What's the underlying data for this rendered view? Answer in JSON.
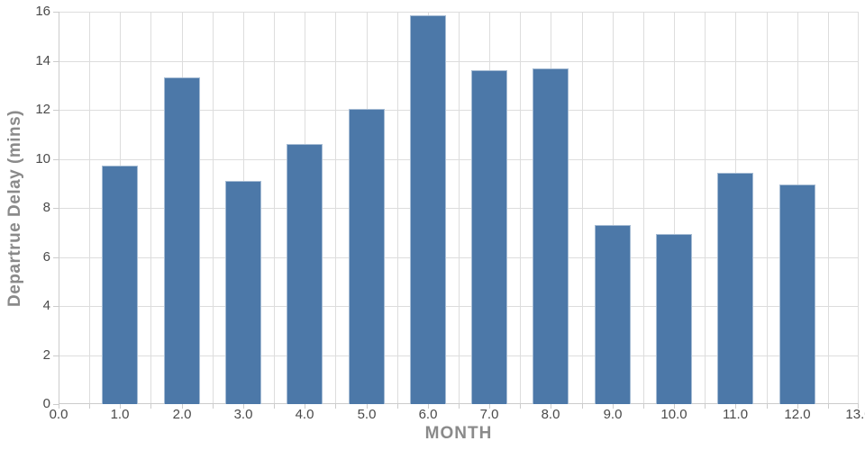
{
  "chart_data": {
    "type": "bar",
    "title": "",
    "xlabel": "MONTH",
    "ylabel": "Departrue Delay (mins)",
    "categories": [
      1,
      2,
      3,
      4,
      5,
      6,
      7,
      8,
      9,
      10,
      11,
      12
    ],
    "values": [
      9.72,
      13.32,
      9.11,
      10.61,
      12.02,
      15.84,
      13.61,
      13.67,
      7.31,
      6.95,
      9.43,
      8.95
    ],
    "xlim": [
      0,
      13
    ],
    "ylim": [
      0,
      16
    ],
    "x_major_ticks": [
      0,
      1,
      2,
      3,
      4,
      5,
      6,
      7,
      8,
      9,
      10,
      11,
      12,
      13
    ],
    "x_tick_labels": [
      "0.0",
      "1.0",
      "2.0",
      "3.0",
      "4.0",
      "5.0",
      "6.0",
      "7.0",
      "8.0",
      "9.0",
      "10.0",
      "11.0",
      "12.0",
      "13.0"
    ],
    "x_minor_tick_step": 0.5,
    "y_major_ticks": [
      0,
      2,
      4,
      6,
      8,
      10,
      12,
      14,
      16
    ],
    "y_tick_labels": [
      "0",
      "2",
      "4",
      "6",
      "8",
      "10",
      "12",
      "14",
      "16"
    ],
    "grid": "vertical every 0.5 month, horizontal every 2 mins",
    "legend": "none",
    "colors": {
      "bar_fill": "#4c78a8",
      "bar_stroke": "rgba(255,255,255,0.5)",
      "grid": "#dddddd",
      "axis": "#cccccc",
      "tick_label": "#4a4a4a",
      "axis_title": "#8a8a8a",
      "background": "#ffffff"
    }
  }
}
